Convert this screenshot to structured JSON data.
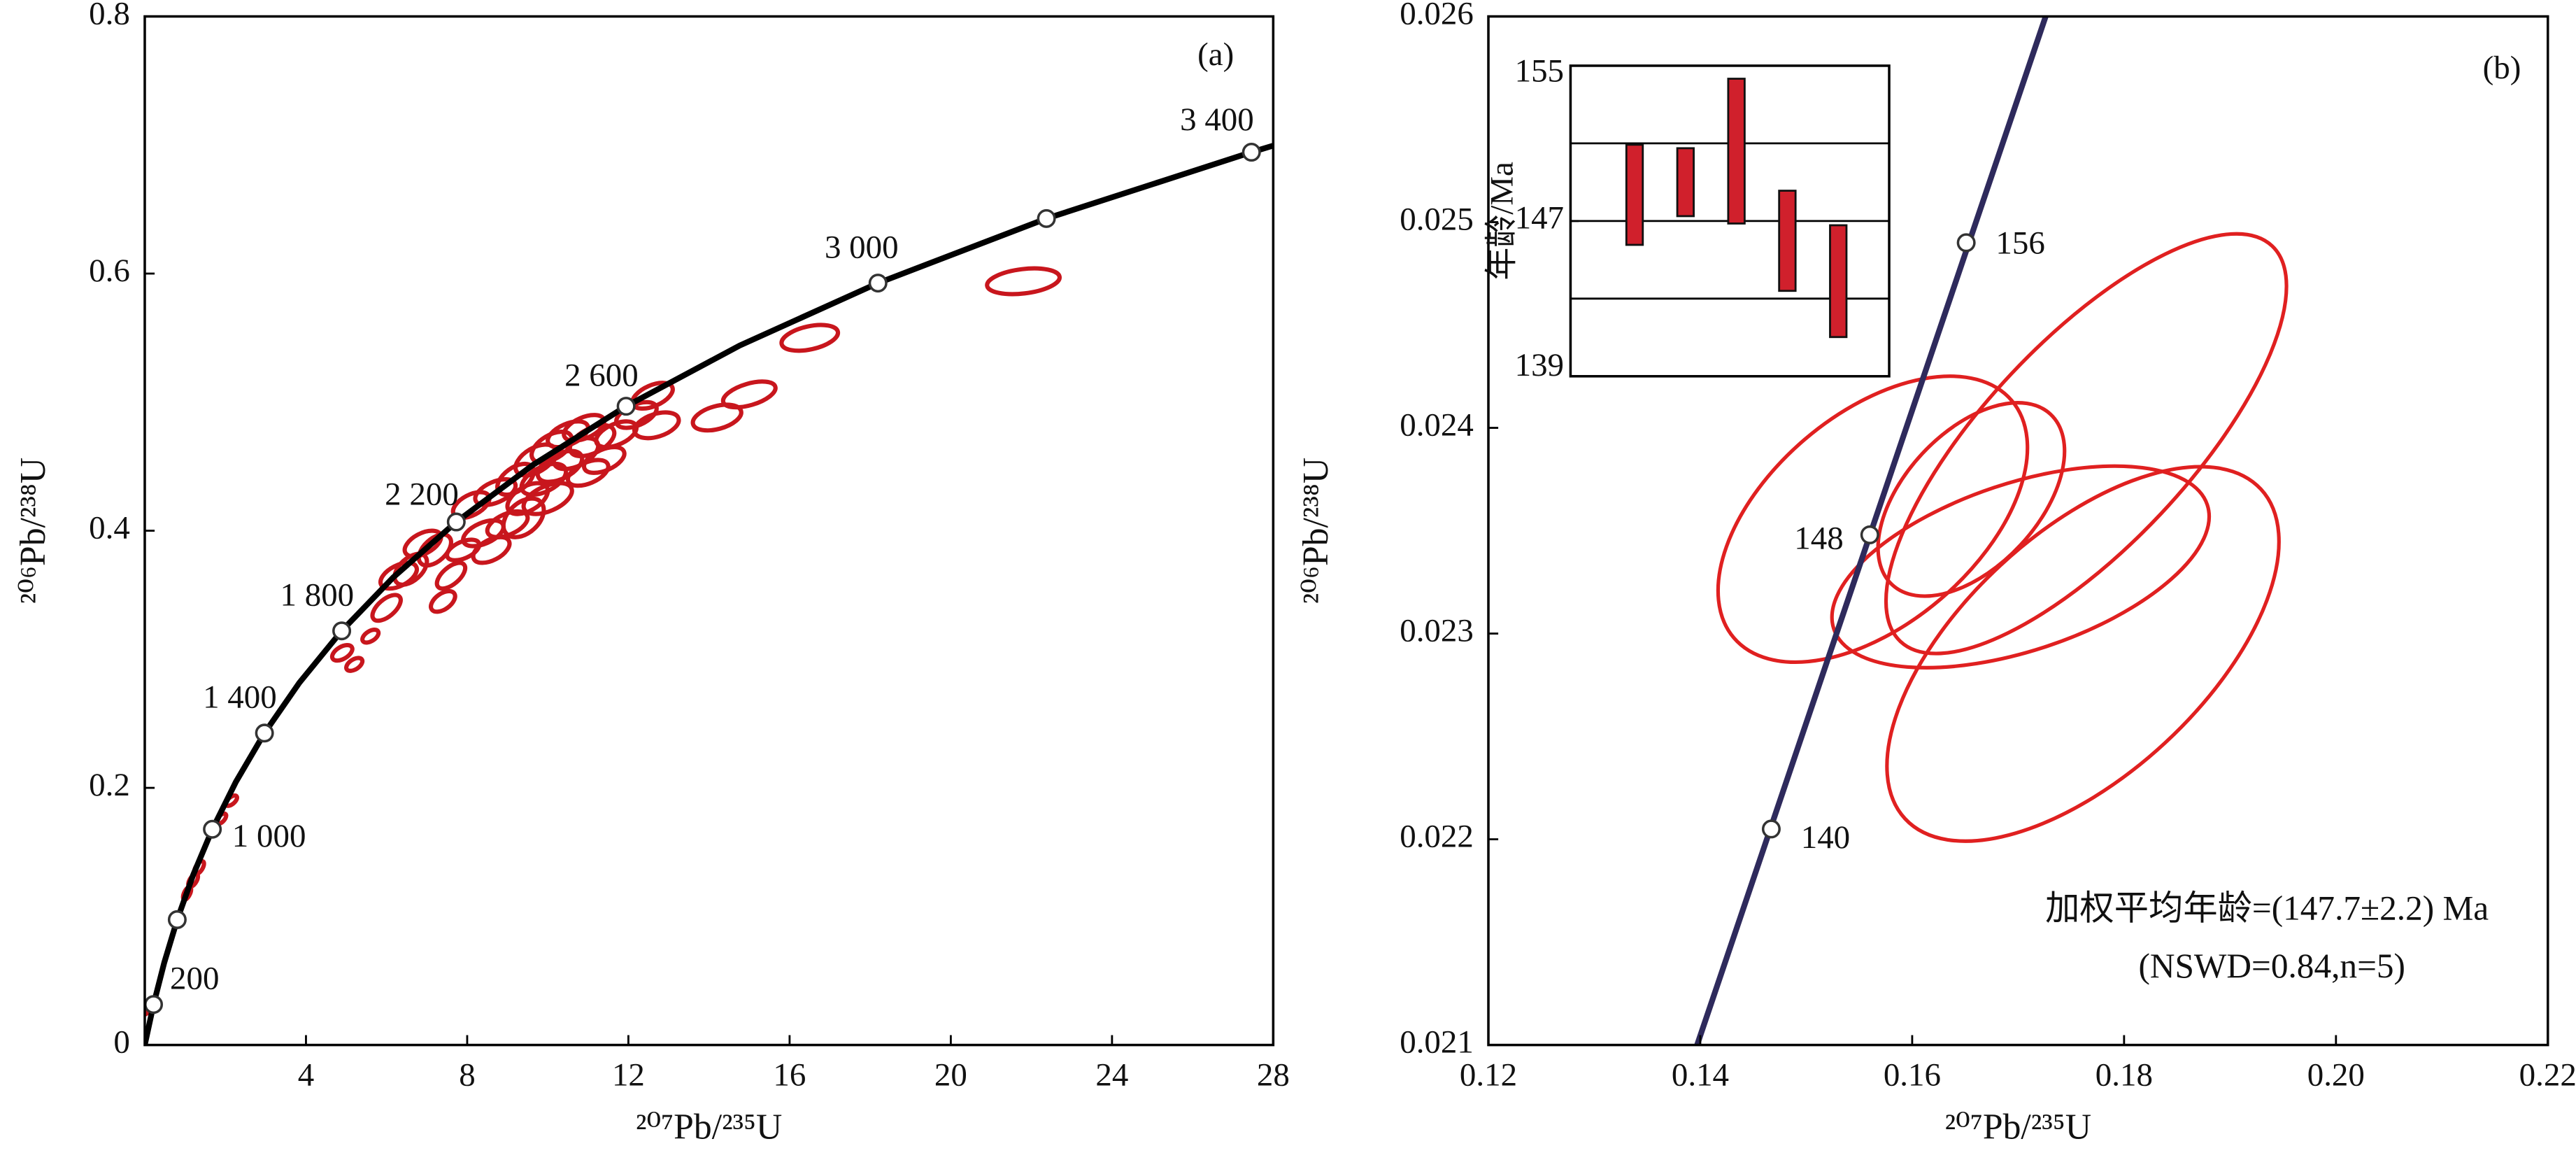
{
  "chart_data": [
    {
      "type": "concordia",
      "panel_label": "(a)",
      "xlabel": "²⁰⁷Pb/²³⁵U",
      "ylabel": "²⁰⁶Pb/²³⁸U",
      "xlim": [
        0,
        28
      ],
      "xticks": [
        4,
        8,
        12,
        16,
        20,
        24,
        28
      ],
      "ylim": [
        0,
        0.8
      ],
      "yticks": [
        0,
        0.2,
        0.4,
        0.6,
        0.8
      ],
      "curve": {
        "color": "#000000",
        "x": [
          0,
          0.2177,
          0.4828,
          0.8056,
          1.1987,
          1.6774,
          2.2604,
          2.9703,
          3.8344,
          4.8868,
          6.1683,
          7.7288,
          9.629,
          11.943,
          14.761,
          18.193,
          22.372,
          27.46,
          28
        ],
        "y": [
          0,
          0.0315,
          0.064,
          0.0975,
          0.1321,
          0.1678,
          0.2046,
          0.2426,
          0.2817,
          0.3221,
          0.3638,
          0.4068,
          0.4511,
          0.4968,
          0.544,
          0.5926,
          0.6428,
          0.6944,
          0.6995
        ]
      },
      "markers": {
        "x": [
          0.2177,
          0.8056,
          1.6774,
          2.9703,
          4.8868,
          7.7288,
          11.943,
          18.193,
          22.372,
          27.46
        ],
        "y": [
          0.0315,
          0.0975,
          0.1678,
          0.2426,
          0.3221,
          0.4068,
          0.4968,
          0.5926,
          0.6428,
          0.6944
        ],
        "labels": [
          "200",
          null,
          "1 000",
          "1 400",
          "1 800",
          "2 200",
          "2 600",
          "3 000",
          null,
          "3 400"
        ]
      },
      "ellipses": {
        "color": "#c8161d",
        "x": [
          0.05,
          1.05,
          1.2,
          1.35,
          1.9,
          2.15,
          4.9,
          5.2,
          5.6,
          6.0,
          6.3,
          6.6,
          6.9,
          7.2,
          7.6,
          7.9,
          8.1,
          8.4,
          8.7,
          9.0,
          9.2,
          9.5,
          9.7,
          9.9,
          10.1,
          10.3,
          10.5,
          10.7,
          10.9,
          11.1,
          11.4,
          11.7,
          12.2,
          12.6,
          12.7,
          14.2,
          15.0,
          16.5,
          21.8,
          9.4,
          8.6,
          7.4,
          10.0,
          11.0
        ],
        "y": [
          0.028,
          0.118,
          0.128,
          0.138,
          0.176,
          0.19,
          0.305,
          0.296,
          0.318,
          0.34,
          0.365,
          0.37,
          0.39,
          0.385,
          0.365,
          0.385,
          0.42,
          0.398,
          0.43,
          0.405,
          0.44,
          0.425,
          0.455,
          0.44,
          0.465,
          0.45,
          0.475,
          0.46,
          0.48,
          0.47,
          0.455,
          0.475,
          0.49,
          0.505,
          0.482,
          0.488,
          0.506,
          0.55,
          0.594,
          0.41,
          0.385,
          0.345,
          0.425,
          0.445
        ],
        "x_err": [
          0.06,
          0.1,
          0.12,
          0.12,
          0.12,
          0.14,
          0.25,
          0.2,
          0.2,
          0.35,
          0.45,
          0.4,
          0.45,
          0.4,
          0.35,
          0.4,
          0.45,
          0.5,
          0.5,
          0.5,
          0.45,
          0.5,
          0.5,
          0.55,
          0.5,
          0.55,
          0.5,
          0.55,
          0.5,
          0.55,
          0.5,
          0.5,
          0.5,
          0.5,
          0.55,
          0.6,
          0.65,
          0.7,
          0.9,
          0.5,
          0.45,
          0.3,
          0.6,
          0.5
        ],
        "y_err": [
          0.004,
          0.005,
          0.005,
          0.005,
          0.004,
          0.004,
          0.006,
          0.005,
          0.005,
          0.01,
          0.01,
          0.012,
          0.01,
          0.012,
          0.01,
          0.008,
          0.01,
          0.01,
          0.01,
          0.01,
          0.012,
          0.012,
          0.012,
          0.012,
          0.012,
          0.012,
          0.01,
          0.012,
          0.01,
          0.012,
          0.01,
          0.01,
          0.01,
          0.01,
          0.01,
          0.01,
          0.01,
          0.01,
          0.01,
          0.015,
          0.01,
          0.008,
          0.012,
          0.01
        ],
        "rho": [
          0.5,
          0.6,
          0.6,
          0.6,
          0.6,
          0.6,
          0.5,
          0.5,
          0.5,
          0.6,
          0.5,
          0.5,
          0.5,
          0.5,
          0.6,
          0.5,
          0.5,
          0.5,
          0.5,
          0.5,
          0.5,
          0.5,
          0.5,
          0.5,
          0.5,
          0.5,
          0.5,
          0.5,
          0.5,
          0.5,
          0.5,
          0.5,
          0.5,
          0.5,
          0.4,
          0.4,
          0.5,
          0.4,
          0.3,
          0.4,
          0.5,
          0.5,
          0.5,
          0.5
        ]
      }
    },
    {
      "type": "concordia",
      "panel_label": "(b)",
      "xlabel": "²⁰⁷Pb/²³⁵U",
      "ylabel": "²⁰⁶Pb/²³⁸U",
      "xlim": [
        0.12,
        0.22
      ],
      "xticks": [
        0.12,
        0.14,
        0.16,
        0.18,
        {
          "value": 0.2,
          "label": "0.20"
        },
        0.22
      ],
      "ylim": [
        0.021,
        0.026
      ],
      "yticks": [
        0.021,
        0.022,
        0.023,
        0.024,
        0.025,
        0.026
      ],
      "curve": {
        "color": "#2e2a5c",
        "x": [
          0.1397,
          0.1726
        ],
        "y": [
          0.021,
          0.026
        ]
      },
      "markers": {
        "x": [
          0.1467,
          0.156,
          0.1651
        ],
        "y": [
          0.02205,
          0.02348,
          0.0249
        ],
        "labels": [
          "140",
          "148",
          "156"
        ]
      },
      "ellipses": {
        "color": "#e02020",
        "x": [
          0.15628,
          0.16558,
          0.17643,
          0.17023,
          0.17612
        ],
        "y": [
          0.023556,
          0.023652,
          0.023923,
          0.023324,
          0.022901
        ],
        "x_err": [
          0.0146,
          0.0088,
          0.0189,
          0.0178,
          0.0185
        ],
        "y_err": [
          0.000695,
          0.00047,
          0.00102,
          0.00049,
          0.00091
        ],
        "rho": [
          0.5,
          0.5,
          0.75,
          0.5,
          0.6
        ]
      },
      "annotations": [
        "加权平均年龄=(147.7±2.2) Ma",
        "(NSWD=0.84,n=5)"
      ]
    },
    {
      "type": "error-bar",
      "ylabel": "年龄/Ma",
      "color": "#d0202c",
      "ylim": [
        139,
        155
      ],
      "yticks": [
        139,
        147,
        155
      ],
      "ygrid": [
        143,
        147,
        151
      ],
      "values": [
        148.35,
        149.0,
        150.6,
        145.98,
        143.9
      ],
      "errors": [
        2.58,
        1.75,
        3.73,
        2.58,
        2.88
      ]
    }
  ]
}
